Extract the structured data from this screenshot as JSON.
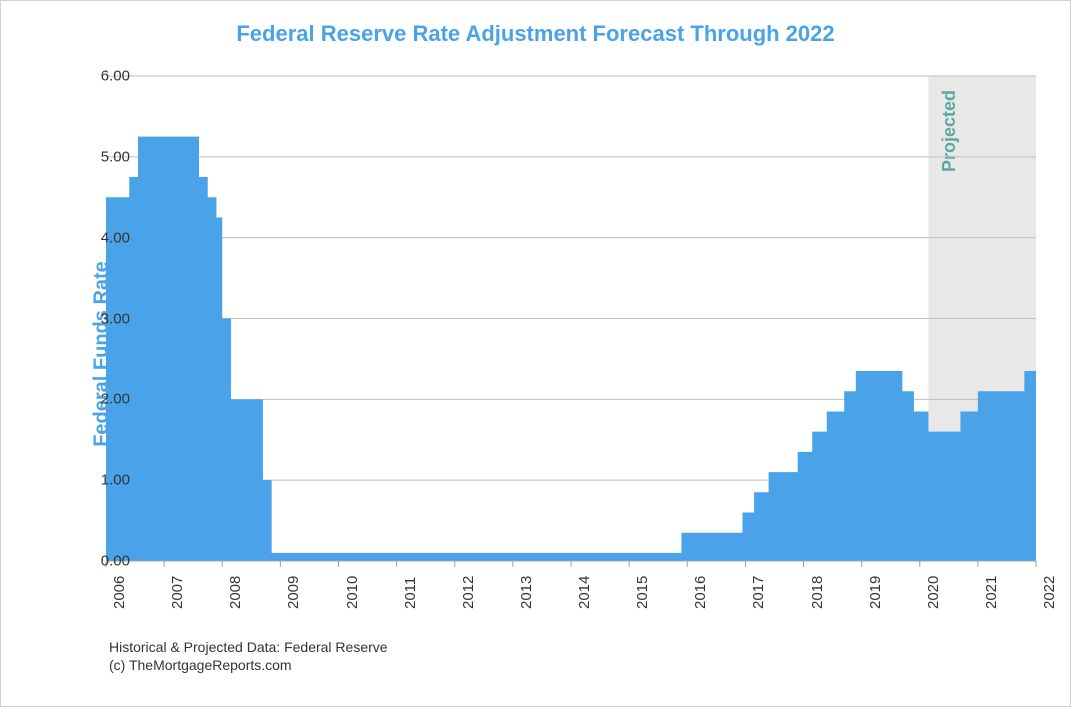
{
  "chart": {
    "type": "area-step",
    "title": "Federal Reserve Rate Adjustment Forecast Through 2022",
    "title_fontsize": 22,
    "title_color": "#4aa3e8",
    "ylabel": "Federal Funds Rate",
    "ylabel_fontsize": 20,
    "ylabel_color": "#4aa3e8",
    "background_color": "#ffffff",
    "border_color": "#d0d0d0",
    "grid_color": "#bfbfbf",
    "area_color": "#4aa3e8",
    "projected_fill": "#d8d8d8",
    "projected_opacity": 0.6,
    "projected_label": "Projected",
    "projected_label_color": "#5aa8a0",
    "projected_label_fontsize": 18,
    "projected_start_x": 14.15,
    "ylim": [
      0,
      6
    ],
    "ytick_step": 1,
    "yticks": [
      "0.00",
      "1.00",
      "2.00",
      "3.00",
      "4.00",
      "5.00",
      "6.00"
    ],
    "xlim": [
      0,
      16
    ],
    "xticks": [
      {
        "pos": 0,
        "label": "2006"
      },
      {
        "pos": 1,
        "label": "2007"
      },
      {
        "pos": 2,
        "label": "2008"
      },
      {
        "pos": 3,
        "label": "2009"
      },
      {
        "pos": 4,
        "label": "2010"
      },
      {
        "pos": 5,
        "label": "2011"
      },
      {
        "pos": 6,
        "label": "2012"
      },
      {
        "pos": 7,
        "label": "2013"
      },
      {
        "pos": 8,
        "label": "2014"
      },
      {
        "pos": 9,
        "label": "2015"
      },
      {
        "pos": 10,
        "label": "2016"
      },
      {
        "pos": 11,
        "label": "2017"
      },
      {
        "pos": 12,
        "label": "2018"
      },
      {
        "pos": 13,
        "label": "2019"
      },
      {
        "pos": 14,
        "label": "2020"
      },
      {
        "pos": 15,
        "label": "2021"
      },
      {
        "pos": 16,
        "label": "2022"
      }
    ],
    "series": [
      {
        "x": 0.0,
        "y": 4.5
      },
      {
        "x": 0.4,
        "y": 4.75
      },
      {
        "x": 0.55,
        "y": 5.25
      },
      {
        "x": 1.6,
        "y": 4.75
      },
      {
        "x": 1.75,
        "y": 4.5
      },
      {
        "x": 1.9,
        "y": 4.25
      },
      {
        "x": 2.0,
        "y": 3.0
      },
      {
        "x": 2.15,
        "y": 2.0
      },
      {
        "x": 2.7,
        "y": 1.0
      },
      {
        "x": 2.85,
        "y": 0.1
      },
      {
        "x": 9.9,
        "y": 0.35
      },
      {
        "x": 10.95,
        "y": 0.6
      },
      {
        "x": 11.15,
        "y": 0.85
      },
      {
        "x": 11.4,
        "y": 1.1
      },
      {
        "x": 11.9,
        "y": 1.35
      },
      {
        "x": 12.15,
        "y": 1.6
      },
      {
        "x": 12.4,
        "y": 1.85
      },
      {
        "x": 12.7,
        "y": 2.1
      },
      {
        "x": 12.9,
        "y": 2.35
      },
      {
        "x": 13.7,
        "y": 2.1
      },
      {
        "x": 13.9,
        "y": 1.85
      },
      {
        "x": 14.15,
        "y": 1.6
      },
      {
        "x": 14.7,
        "y": 1.85
      },
      {
        "x": 15.0,
        "y": 2.1
      },
      {
        "x": 15.8,
        "y": 2.35
      },
      {
        "x": 16.0,
        "y": 2.35
      }
    ],
    "footnote_line1": "Historical & Projected Data: Federal Reserve",
    "footnote_line2": "(c) TheMortgageReports.com",
    "footnote_fontsize": 14
  }
}
